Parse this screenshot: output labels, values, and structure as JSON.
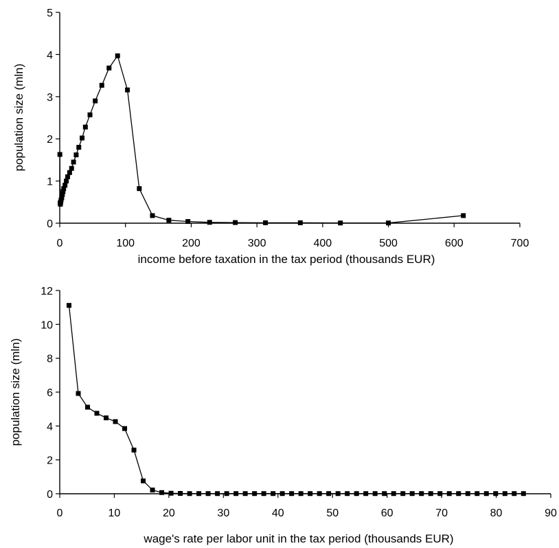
{
  "chart_data": [
    {
      "type": "line",
      "title": "",
      "xlabel": "income before taxation in the tax period (thousands EUR)",
      "ylabel": "population size (mln)",
      "xlim": [
        0,
        700
      ],
      "ylim": [
        0,
        5
      ],
      "xticks": [
        "0",
        "100",
        "200",
        "300",
        "400",
        "500",
        "600",
        "700"
      ],
      "yticks": [
        "0",
        "1",
        "2",
        "3",
        "4",
        "5"
      ],
      "grid": false,
      "marker": "square",
      "series": [
        {
          "x": [
            0.2,
            0.6,
            1,
            1.5,
            2,
            3,
            4,
            5,
            6,
            8,
            10,
            12,
            15,
            18,
            21,
            25,
            29,
            34,
            39,
            46,
            54,
            64,
            75,
            88,
            103,
            121,
            141,
            166,
            195,
            228,
            267,
            313,
            366,
            427,
            500,
            614
          ],
          "y": [
            1.63,
            0.48,
            0.45,
            0.5,
            0.55,
            0.6,
            0.68,
            0.75,
            0.82,
            0.9,
            1.0,
            1.1,
            1.2,
            1.3,
            1.45,
            1.62,
            1.8,
            2.02,
            2.28,
            2.57,
            2.9,
            3.27,
            3.68,
            3.97,
            3.16,
            0.82,
            0.18,
            0.07,
            0.04,
            0.02,
            0.015,
            0.01,
            0.01,
            0.005,
            0.005,
            0.18
          ]
        }
      ]
    },
    {
      "type": "line",
      "title": "",
      "xlabel": "wage's rate per labor unit in the tax period (thousands EUR)",
      "ylabel": "population size (mln)",
      "xlim": [
        0,
        90
      ],
      "ylim": [
        0,
        12
      ],
      "xticks": [
        "0",
        "10",
        "20",
        "30",
        "40",
        "50",
        "60",
        "70",
        "80",
        "90"
      ],
      "yticks": [
        "0",
        "2",
        "4",
        "6",
        "8",
        "10",
        "12"
      ],
      "grid": false,
      "marker": "square",
      "series": [
        {
          "x": [
            1.7,
            3.4,
            5.1,
            6.8,
            8.5,
            10.2,
            11.9,
            13.6,
            15.3,
            17,
            18.7,
            20.4,
            22.1,
            23.8,
            25.5,
            27.2,
            28.9,
            30.6,
            32.3,
            34,
            35.7,
            37.4,
            39.1,
            40.8,
            42.5,
            44.2,
            45.9,
            47.6,
            49.3,
            51,
            52.7,
            54.4,
            56.1,
            57.8,
            59.5,
            61.2,
            62.9,
            64.6,
            66.3,
            68,
            69.7,
            71.4,
            73.1,
            74.8,
            76.5,
            78.2,
            79.9,
            81.6,
            83.3,
            85
          ],
          "y": [
            11.12,
            5.92,
            5.11,
            4.75,
            4.48,
            4.26,
            3.85,
            2.58,
            0.76,
            0.22,
            0.07,
            0.03,
            0.02,
            0.01,
            0.01,
            0.01,
            0.01,
            0.01,
            0.01,
            0.01,
            0.01,
            0.01,
            0.01,
            0.01,
            0.01,
            0.01,
            0.01,
            0.01,
            0.01,
            0.01,
            0.01,
            0.01,
            0.01,
            0.01,
            0.01,
            0.01,
            0.01,
            0.01,
            0.01,
            0.01,
            0.01,
            0.01,
            0.01,
            0.01,
            0.01,
            0.01,
            0.01,
            0.01,
            0.01,
            0.01
          ]
        }
      ]
    }
  ]
}
